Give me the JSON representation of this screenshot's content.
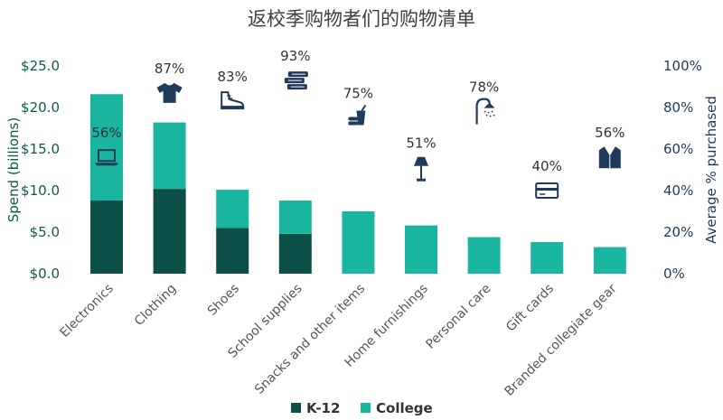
{
  "chart_data": {
    "type": "bar",
    "title": "返校季购物者们的购物清单",
    "ylabel": "Spend (billions)",
    "y2label": "Average % purchased",
    "ylim": [
      0,
      25
    ],
    "y2lim": [
      0,
      100
    ],
    "yticks": [
      "$0.0",
      "$5.0",
      "$10.0",
      "$15.0",
      "$20.0",
      "$25.0"
    ],
    "y2ticks": [
      "0%",
      "20%",
      "40%",
      "60%",
      "80%",
      "100%"
    ],
    "categories": [
      "Electronics",
      "Clothing",
      "Shoes",
      "School supplies",
      "Snacks and other items",
      "Home furnishings",
      "Personal care",
      "Gift cards",
      "Branded collegiate gear"
    ],
    "series": [
      {
        "name": "K-12",
        "color": "#0b4f46",
        "values": [
          8.8,
          10.2,
          5.5,
          4.8,
          0,
          0,
          0,
          0,
          0
        ]
      },
      {
        "name": "College",
        "color": "#1ab59e",
        "values": [
          12.8,
          8.0,
          4.6,
          4.0,
          7.5,
          5.8,
          4.4,
          3.8,
          3.2
        ]
      }
    ],
    "percent_purchased": [
      56,
      87,
      83,
      93,
      75,
      51,
      78,
      40,
      56
    ],
    "percent_labels": [
      "56%",
      "87%",
      "83%",
      "93%",
      "75%",
      "51%",
      "78%",
      "40%",
      "56%"
    ],
    "icons": [
      "laptop-icon",
      "tshirt-icon",
      "sneaker-icon",
      "books-icon",
      "snack-icon",
      "lamp-icon",
      "shower-icon",
      "gift-card-icon",
      "blazer-icon"
    ],
    "icon_color": "#1f3a5a",
    "legend_position": "bottom",
    "grid": false
  }
}
